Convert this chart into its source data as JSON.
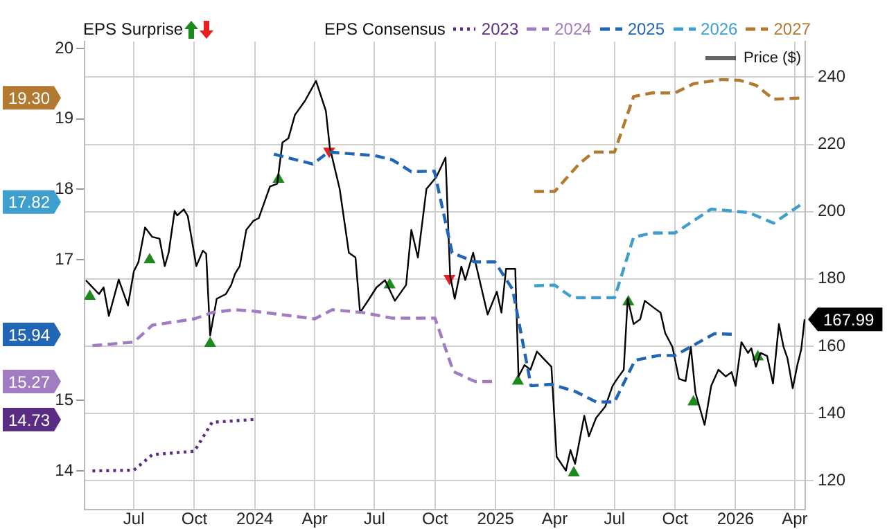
{
  "chart_data": {
    "type": "line",
    "annotations": [
      "EPS Surprise",
      "EPS Consensus",
      "19.30",
      "17.82",
      "15.94",
      "15.27",
      "14.73"
    ],
    "xlim": [
      "2023-04-17",
      "2026-04-17"
    ],
    "xticks": [
      {
        "value": "2023-07",
        "label": "Jul"
      },
      {
        "value": "2023-10",
        "label": "Oct"
      },
      {
        "value": "2024-01",
        "label": "2024"
      },
      {
        "value": "2024-04",
        "label": "Apr"
      },
      {
        "value": "2024-07",
        "label": "Jul"
      },
      {
        "value": "2024-10",
        "label": "Oct"
      },
      {
        "value": "2025-01",
        "label": "2025"
      },
      {
        "value": "2025-04",
        "label": "Apr"
      },
      {
        "value": "2025-07",
        "label": "Jul"
      },
      {
        "value": "2025-10",
        "label": "Oct"
      },
      {
        "value": "2026-01",
        "label": "2026"
      },
      {
        "value": "2026-04",
        "label": "Apr"
      }
    ],
    "ylim": [
      13.45,
      20.1
    ],
    "yticks": [
      14,
      15,
      17,
      18,
      19,
      20
    ],
    "y2lim": [
      111.4,
      250.6
    ],
    "y2ticks": [
      120,
      140,
      160,
      180,
      200,
      220,
      240
    ],
    "grid": true,
    "legend": "top",
    "series": [
      {
        "name": "2023",
        "color": "#5b2c83",
        "line_style": "dotted",
        "marker": "none",
        "x": [
          "2023-04-29",
          "2023-07-01",
          "2023-07-29",
          "2023-10-01",
          "2023-10-28",
          "2023-12-30"
        ],
        "values": [
          14.0,
          14.01,
          14.23,
          14.28,
          14.69,
          14.73
        ]
      },
      {
        "name": "2024",
        "color": "#a17cc1",
        "line_style": "dashed",
        "marker": "none",
        "x": [
          "2023-04-29",
          "2023-07-01",
          "2023-07-29",
          "2023-10-01",
          "2023-10-28",
          "2023-12-02",
          "2023-12-30",
          "2024-04-01",
          "2024-04-28",
          "2024-06-13",
          "2024-07-28",
          "2024-10-01",
          "2024-10-29",
          "2024-12-01",
          "2024-12-31"
        ],
        "values": [
          15.78,
          15.83,
          16.07,
          16.16,
          16.25,
          16.29,
          16.27,
          16.16,
          16.29,
          16.25,
          16.17,
          16.17,
          15.41,
          15.27,
          15.27
        ]
      },
      {
        "name": "2025",
        "color": "#2165b5",
        "line_style": "dashed",
        "marker": "none",
        "x": [
          "2024-01-30",
          "2024-03-29",
          "2024-04-22",
          "2024-07-01",
          "2024-07-28",
          "2024-08-26",
          "2024-09-30",
          "2024-10-27",
          "2024-11-30",
          "2024-12-31",
          "2025-01-27",
          "2025-02-24",
          "2025-03-27",
          "2025-05-02",
          "2025-06-03",
          "2025-07-01",
          "2025-08-01",
          "2025-09-06",
          "2025-10-01",
          "2025-11-30",
          "2025-12-31"
        ],
        "values": [
          18.5,
          18.36,
          18.53,
          18.48,
          18.42,
          18.25,
          18.26,
          17.1,
          16.97,
          16.97,
          16.58,
          15.21,
          15.23,
          15.13,
          14.98,
          14.98,
          15.57,
          15.64,
          15.64,
          15.95,
          15.94
        ]
      },
      {
        "name": "2026",
        "color": "#3e9fcf",
        "line_style": "dashed",
        "marker": "none",
        "x": [
          "2025-03-01",
          "2025-04-01",
          "2025-04-28",
          "2025-07-01",
          "2025-07-30",
          "2025-08-27",
          "2025-10-01",
          "2025-11-25",
          "2026-01-21",
          "2026-02-28",
          "2026-04-16"
        ],
        "values": [
          16.63,
          16.64,
          16.46,
          16.46,
          17.32,
          17.38,
          17.38,
          17.72,
          17.67,
          17.52,
          17.82
        ]
      },
      {
        "name": "2027",
        "color": "#b27a31",
        "line_style": "dashed",
        "marker": "none",
        "x": [
          "2025-03-01",
          "2025-04-01",
          "2025-05-08",
          "2025-05-30",
          "2025-07-01",
          "2025-07-30",
          "2025-08-27",
          "2025-10-01",
          "2025-10-29",
          "2025-12-10",
          "2026-01-07",
          "2026-02-01",
          "2026-02-28",
          "2026-04-16"
        ],
        "values": [
          17.97,
          17.97,
          18.36,
          18.53,
          18.53,
          19.32,
          19.37,
          19.37,
          19.5,
          19.56,
          19.55,
          19.48,
          19.28,
          19.3
        ]
      },
      {
        "name": "Price ($)",
        "color": "#000000",
        "axis": "y2",
        "line_style": "solid",
        "marker": "none",
        "x": [
          "2023-04-19",
          "2023-05-09",
          "2023-05-16",
          "2023-05-24",
          "2023-06-08",
          "2023-06-22",
          "2023-07-01",
          "2023-07-08",
          "2023-07-18",
          "2023-07-29",
          "2023-08-09",
          "2023-08-17",
          "2023-08-23",
          "2023-09-01",
          "2023-09-05",
          "2023-09-15",
          "2023-09-21",
          "2023-10-04",
          "2023-10-14",
          "2023-10-19",
          "2023-10-25",
          "2023-11-04",
          "2023-11-18",
          "2023-11-26",
          "2023-12-02",
          "2023-12-09",
          "2023-12-19",
          "2023-12-30",
          "2024-01-07",
          "2024-01-24",
          "2024-02-04",
          "2024-02-12",
          "2024-02-21",
          "2024-03-02",
          "2024-03-17",
          "2024-04-03",
          "2024-04-18",
          "2024-04-24",
          "2024-05-09",
          "2024-05-23",
          "2024-06-02",
          "2024-06-09",
          "2024-06-23",
          "2024-07-04",
          "2024-07-17",
          "2024-08-01",
          "2024-08-18",
          "2024-08-26",
          "2024-09-05",
          "2024-09-18",
          "2024-10-03",
          "2024-10-17",
          "2024-10-24",
          "2024-10-31",
          "2024-11-10",
          "2024-11-16",
          "2024-11-28",
          "2024-12-20",
          "2025-01-03",
          "2025-01-10",
          "2025-01-17",
          "2025-01-31",
          "2025-02-05",
          "2025-02-14",
          "2025-02-23",
          "2025-03-05",
          "2025-03-18",
          "2025-03-27",
          "2025-04-04",
          "2025-04-18",
          "2025-04-25",
          "2025-05-02",
          "2025-05-16",
          "2025-05-23",
          "2025-06-03",
          "2025-06-17",
          "2025-06-28",
          "2025-07-05",
          "2025-07-15",
          "2025-07-21",
          "2025-07-30",
          "2025-08-09",
          "2025-08-16",
          "2025-08-30",
          "2025-09-09",
          "2025-09-16",
          "2025-09-27",
          "2025-10-07",
          "2025-10-17",
          "2025-10-25",
          "2025-11-01",
          "2025-11-15",
          "2025-11-25",
          "2025-12-06",
          "2025-12-17",
          "2025-12-26",
          "2026-01-01",
          "2026-01-10",
          "2026-01-20",
          "2026-01-25",
          "2026-02-01",
          "2026-02-08",
          "2026-02-18",
          "2026-02-27",
          "2026-03-08",
          "2026-03-15",
          "2026-03-21",
          "2026-03-29",
          "2026-04-05",
          "2026-04-11",
          "2026-04-16"
        ],
        "values": [
          179.6,
          175.5,
          177.5,
          169.0,
          179.8,
          172.1,
          182.3,
          185.0,
          195.3,
          192.5,
          192.0,
          183.8,
          187.9,
          200.2,
          198.9,
          200.7,
          198.7,
          183.8,
          188.4,
          187.5,
          163.2,
          174.1,
          175.5,
          178.2,
          181.6,
          183.8,
          194.6,
          197.3,
          198.1,
          207.5,
          208.3,
          220.6,
          221.8,
          228.8,
          232.9,
          238.9,
          230.0,
          219.1,
          206.8,
          187.8,
          186.4,
          170.0,
          174.1,
          177.5,
          179.6,
          173.5,
          178.2,
          194.6,
          186.4,
          206.8,
          210.3,
          216.1,
          180.9,
          174.1,
          183.7,
          179.7,
          187.8,
          169.4,
          176.2,
          170.0,
          183.0,
          183.0,
          151.0,
          154.4,
          153.0,
          158.4,
          155.7,
          153.9,
          127.1,
          123.0,
          129.1,
          125.0,
          139.3,
          133.2,
          138.7,
          142.1,
          148.2,
          150.3,
          153.0,
          174.1,
          166.6,
          168.0,
          173.5,
          171.4,
          170.0,
          163.9,
          159.8,
          150.3,
          149.6,
          159.8,
          146.2,
          136.6,
          148.2,
          153.0,
          151.0,
          152.3,
          148.2,
          161.2,
          158.0,
          159.4,
          153.9,
          158.0,
          157.1,
          148.9,
          166.6,
          159.8,
          156.4,
          147.5,
          154.4,
          159.1,
          167.99
        ],
        "value_labels": [
          null,
          null,
          null,
          null,
          null,
          null,
          null,
          null,
          null,
          null,
          null,
          null,
          null,
          null,
          null,
          null,
          null,
          null,
          null,
          null,
          null,
          null,
          null,
          null,
          null,
          null,
          null,
          null,
          null,
          null,
          null,
          null,
          null,
          null,
          null,
          null,
          null,
          null,
          null,
          null,
          null,
          null,
          null,
          null,
          null,
          null,
          null,
          null,
          null,
          null,
          null,
          null,
          null,
          null,
          null,
          null,
          null,
          null,
          null,
          null,
          null,
          null,
          null,
          null,
          null,
          null,
          null,
          null,
          null,
          null,
          null,
          null,
          null,
          null,
          null,
          null,
          null,
          null,
          null,
          null,
          null,
          null,
          null,
          null,
          null,
          null,
          null,
          null,
          null,
          null,
          null,
          null,
          null,
          null,
          null,
          null,
          null,
          null,
          null,
          null,
          null,
          null,
          null,
          null,
          null,
          null,
          null,
          null,
          null,
          null,
          "167.99"
        ]
      },
      {
        "type": "scatter",
        "color": "#1e8a1e",
        "axis": "y2",
        "marker": "triangle",
        "x": [
          "2023-04-25",
          "2023-07-25",
          "2023-10-25",
          "2024-02-06",
          "2024-07-24",
          "2025-02-04",
          "2025-04-30",
          "2025-07-22",
          "2025-10-29",
          "2026-02-04"
        ],
        "values": [
          174.8,
          185.7,
          160.8,
          209.6,
          178.2,
          149.6,
          122.3,
          173.2,
          143.4,
          156.8
        ]
      },
      {
        "type": "scatter",
        "color": "#e82020",
        "axis": "y2",
        "marker": "triangle",
        "x": [
          "2024-04-23",
          "2024-10-23"
        ],
        "values": [
          218.0,
          180.2
        ]
      }
    ]
  }
}
